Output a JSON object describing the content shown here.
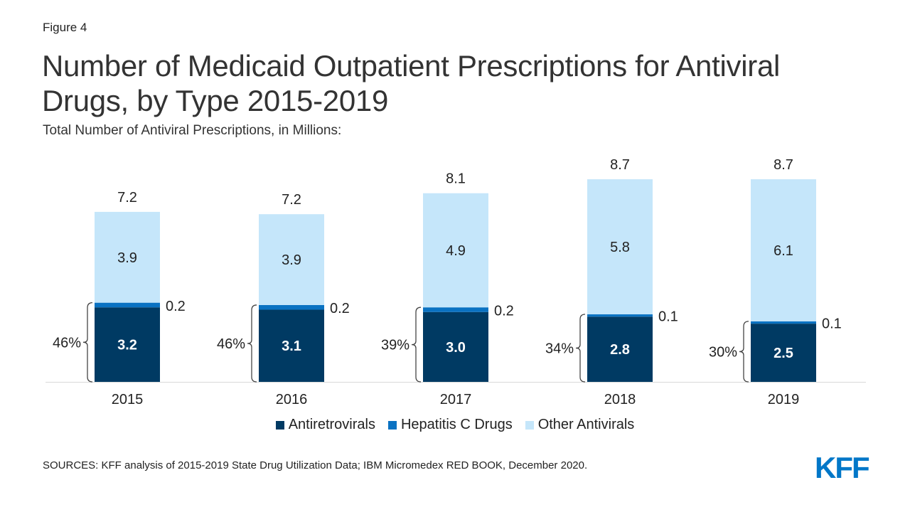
{
  "figure_label": "Figure 4",
  "title": "Number of Medicaid Outpatient Prescriptions for Antiviral Drugs, by Type 2015-2019",
  "subtitle": "Total Number of Antiviral Prescriptions, in Millions:",
  "source": "SOURCES: KFF analysis of 2015-2019 State Drug Utilization Data; IBM Micromedex RED BOOK, December 2020.",
  "logo_text": "KFF",
  "colors": {
    "antiretrovirals": "#003a63",
    "hepatitis_c": "#0a72c2",
    "other": "#c5e6fa",
    "text": "#333333",
    "axis": "#d9d9d9",
    "logo": "#0077c8"
  },
  "chart_data": {
    "type": "bar",
    "stacked": true,
    "categories": [
      "2015",
      "2016",
      "2017",
      "2018",
      "2019"
    ],
    "series": [
      {
        "name": "Antiretrovirals",
        "values": [
          3.2,
          3.1,
          3.0,
          2.8,
          2.5
        ],
        "labels": [
          "3.2",
          "3.1",
          "3.0",
          "2.8",
          "2.5"
        ]
      },
      {
        "name": "Hepatitis C Drugs",
        "values": [
          0.2,
          0.2,
          0.2,
          0.1,
          0.1
        ],
        "labels": [
          "0.2",
          "0.2",
          "0.2",
          "0.1",
          "0.1"
        ]
      },
      {
        "name": "Other Antivirals",
        "values": [
          3.9,
          3.9,
          4.9,
          5.8,
          6.1
        ],
        "labels": [
          "3.9",
          "3.9",
          "4.9",
          "5.8",
          "6.1"
        ]
      }
    ],
    "totals": [
      "7.2",
      "7.2",
      "8.1",
      "8.7",
      "8.7"
    ],
    "bracket_percentages": [
      "46%",
      "46%",
      "39%",
      "34%",
      "30%"
    ],
    "ylim": [
      0,
      10
    ],
    "grid": false,
    "legend_position": "bottom-center"
  }
}
